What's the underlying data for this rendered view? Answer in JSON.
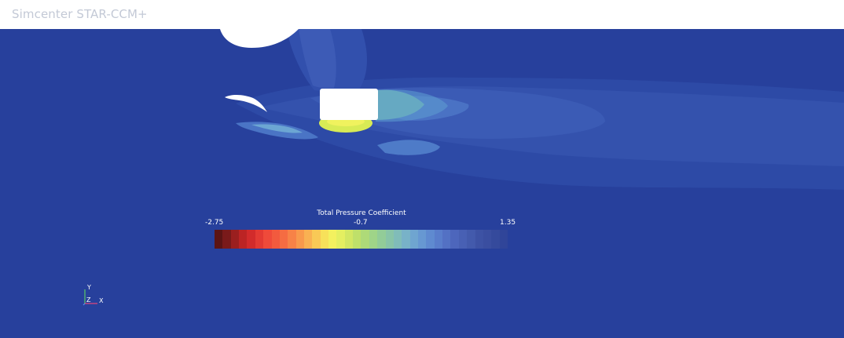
{
  "app": {
    "title": "Simcenter STAR-CCM+"
  },
  "colors": {
    "background": "#27409c",
    "header_bg": "#ffffff",
    "title_text": "#c3c9d6"
  },
  "legend": {
    "title": "Total Pressure Coefficient",
    "min_label": "-2.75",
    "mid_label": "-0.7",
    "max_label": "1.35",
    "color_stops": [
      "#5c1414",
      "#7a1a1a",
      "#9b1f1f",
      "#bc2424",
      "#d22b2b",
      "#e33a33",
      "#ef4a3a",
      "#f25a3e",
      "#f56c42",
      "#f78247",
      "#f8994c",
      "#f9b152",
      "#f9c956",
      "#f7e15a",
      "#f3f15f",
      "#e4ef61",
      "#d2e763",
      "#bfe06a",
      "#aeda78",
      "#9fd488",
      "#92cc98",
      "#88c4a8",
      "#80bcb9",
      "#78b2c8",
      "#6fa5d0",
      "#6798d2",
      "#5f8ad0",
      "#597dcb",
      "#5371c4",
      "#4d66bc",
      "#4860b4",
      "#435aac",
      "#3d52a4",
      "#3a4ea0",
      "#354a9c",
      "#304599"
    ]
  },
  "triad": {
    "y_label": "Y",
    "z_label": "Z",
    "x_label": "X"
  }
}
